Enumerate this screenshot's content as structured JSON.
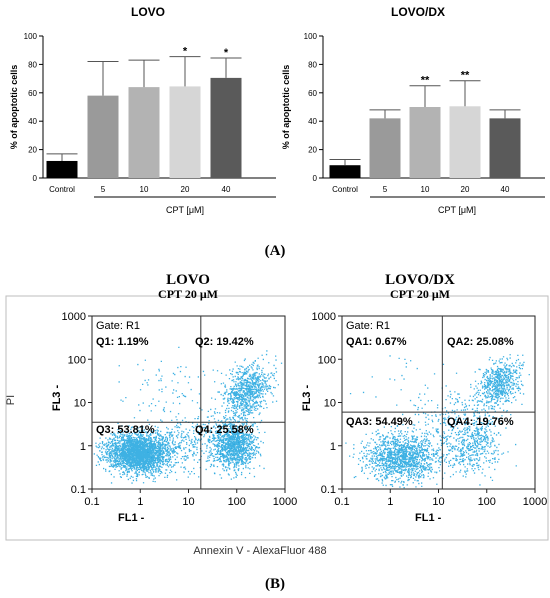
{
  "panel_a_label": "(A)",
  "panel_b_label": "(B)",
  "chart_data": [
    {
      "type": "bar",
      "title": "LOVO",
      "ylabel": "% of apoptotic cells",
      "xlabel": "CPT [μM]",
      "ylim": [
        0,
        100
      ],
      "yticks": [
        0,
        20,
        40,
        60,
        80,
        100
      ],
      "grid": false,
      "categories": [
        "Control",
        "5",
        "10",
        "20",
        "40"
      ],
      "values": [
        12,
        58,
        64,
        64.5,
        70.5
      ],
      "errors": [
        5,
        24,
        19,
        21,
        14
      ],
      "significance": [
        "",
        "",
        "",
        "*",
        "*"
      ],
      "colors": [
        "#000000",
        "#9a9a9a",
        "#b3b3b3",
        "#d6d6d6",
        "#5a5a5a"
      ]
    },
    {
      "type": "bar",
      "title": "LOVO/DX",
      "ylabel": "% of apoptotic cells",
      "xlabel": "CPT [μM]",
      "ylim": [
        0,
        100
      ],
      "yticks": [
        0,
        20,
        40,
        60,
        80,
        100
      ],
      "grid": false,
      "categories": [
        "Control",
        "5",
        "10",
        "20",
        "40"
      ],
      "values": [
        9,
        42,
        50,
        50.5,
        42
      ],
      "errors": [
        4,
        6,
        15,
        18,
        6
      ],
      "significance": [
        "",
        "",
        "**",
        "**",
        ""
      ],
      "colors": [
        "#000000",
        "#9a9a9a",
        "#b3b3b3",
        "#d6d6d6",
        "#5a5a5a"
      ]
    },
    {
      "type": "scatter",
      "title": "LOVO",
      "subtitle": "CPT 20 μM",
      "xlabel": "FL1  -",
      "ylabel": "FL3  -",
      "scale": "log",
      "xlim": [
        0.1,
        1000
      ],
      "ylim": [
        0.1,
        1000
      ],
      "xticks": [
        "0.1",
        "1",
        "10",
        "100",
        "1000"
      ],
      "yticks": [
        "0.1",
        "1",
        "10",
        "100",
        "1000"
      ],
      "gate": "Gate: R1",
      "quadrant_x": 18,
      "quadrant_y": 3.5,
      "quadrants": [
        {
          "label": "Q1: 1.19%",
          "value": 1.19
        },
        {
          "label": "Q2: 19.42%",
          "value": 19.42
        },
        {
          "label": "Q3: 53.81%",
          "value": 53.81
        },
        {
          "label": "Q4: 25.58%",
          "value": 25.58
        }
      ],
      "color": "#29a8e0"
    },
    {
      "type": "scatter",
      "title": "LOVO/DX",
      "subtitle": "CPT 20 μM",
      "xlabel": "FL1  -",
      "ylabel": "FL3  -",
      "scale": "log",
      "xlim": [
        0.1,
        1000
      ],
      "ylim": [
        0.1,
        1000
      ],
      "xticks": [
        "0.1",
        "1",
        "10",
        "100",
        "1000"
      ],
      "yticks": [
        "0.1",
        "1",
        "10",
        "100",
        "1000"
      ],
      "gate": "Gate: R1",
      "quadrant_x": 12,
      "quadrant_y": 6,
      "quadrants": [
        {
          "label": "QA1: 0.67%",
          "value": 0.67
        },
        {
          "label": "QA2: 25.08%",
          "value": 25.08
        },
        {
          "label": "QA3: 54.49%",
          "value": 54.49
        },
        {
          "label": "QA4: 19.76%",
          "value": 19.76
        }
      ],
      "color": "#29a8e0"
    }
  ],
  "flow_common": {
    "y_axis_label": "PI",
    "x_axis_label": "Annexin V - AlexaFluor 488"
  }
}
